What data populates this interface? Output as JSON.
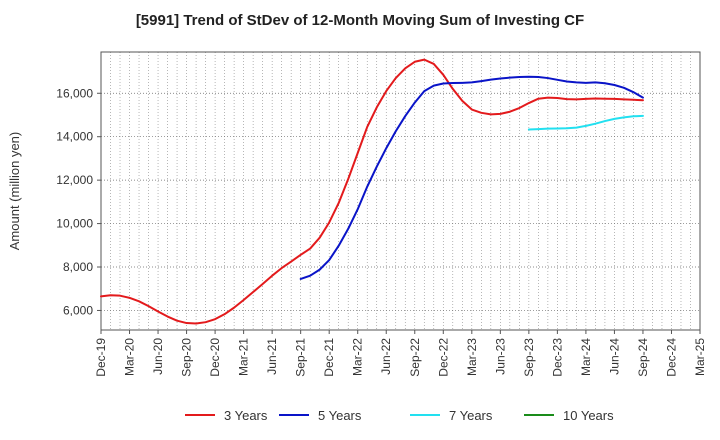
{
  "chart_data": {
    "type": "line",
    "title": "[5991]  Trend of StDev of 12-Month Moving Sum of Investing CF",
    "xlabel": "",
    "ylabel": "Amount (million yen)",
    "ylim": [
      5100,
      17900
    ],
    "yticks": [
      6000,
      8000,
      10000,
      12000,
      14000,
      16000
    ],
    "ytick_labels": [
      "6,000",
      "8,000",
      "10,000",
      "12,000",
      "14,000",
      "16,000"
    ],
    "x_range": [
      "Dec-19",
      "Mar-25"
    ],
    "xtick_labels": [
      "Dec-19",
      "Mar-20",
      "Jun-20",
      "Sep-20",
      "Dec-20",
      "Mar-21",
      "Jun-21",
      "Sep-21",
      "Dec-21",
      "Mar-22",
      "Jun-22",
      "Sep-22",
      "Dec-22",
      "Mar-23",
      "Jun-23",
      "Sep-23",
      "Dec-23",
      "Mar-24",
      "Jun-24",
      "Sep-24",
      "Dec-24",
      "Mar-25"
    ],
    "grid": true,
    "legend_position": "bottom",
    "series": [
      {
        "name": "3 Years",
        "color": "#e31a1c",
        "x": [
          "Dec-19",
          "Jan-20",
          "Feb-20",
          "Mar-20",
          "Apr-20",
          "May-20",
          "Jun-20",
          "Jul-20",
          "Aug-20",
          "Sep-20",
          "Oct-20",
          "Nov-20",
          "Dec-20",
          "Jan-21",
          "Feb-21",
          "Mar-21",
          "Apr-21",
          "May-21",
          "Jun-21",
          "Jul-21",
          "Aug-21",
          "Sep-21",
          "Oct-21",
          "Nov-21",
          "Dec-21",
          "Jan-22",
          "Feb-22",
          "Mar-22",
          "Apr-22",
          "May-22",
          "Jun-22",
          "Jul-22",
          "Aug-22",
          "Sep-22",
          "Oct-22",
          "Nov-22",
          "Dec-22",
          "Jan-23",
          "Feb-23",
          "Mar-23",
          "Apr-23",
          "May-23",
          "Jun-23",
          "Jul-23",
          "Aug-23",
          "Sep-23",
          "Oct-23",
          "Nov-23",
          "Dec-23",
          "Jan-24",
          "Feb-24",
          "Mar-24",
          "Apr-24",
          "May-24",
          "Jun-24",
          "Jul-24",
          "Aug-24",
          "Sep-24"
        ],
        "values": [
          6650,
          6700,
          6680,
          6580,
          6420,
          6200,
          5950,
          5720,
          5530,
          5420,
          5400,
          5460,
          5600,
          5830,
          6130,
          6480,
          6850,
          7220,
          7600,
          7950,
          8250,
          8560,
          8850,
          9350,
          10050,
          10950,
          12050,
          13250,
          14450,
          15350,
          16100,
          16700,
          17150,
          17450,
          17550,
          17350,
          16850,
          16200,
          15650,
          15250,
          15100,
          15030,
          15050,
          15150,
          15320,
          15550,
          15750,
          15800,
          15780,
          15730,
          15720,
          15740,
          15760,
          15750,
          15740,
          15720,
          15700,
          15680
        ]
      },
      {
        "name": "5 Years",
        "color": "#0a14c8",
        "x": [
          "Sep-21",
          "Oct-21",
          "Nov-21",
          "Dec-21",
          "Jan-22",
          "Feb-22",
          "Mar-22",
          "Apr-22",
          "May-22",
          "Jun-22",
          "Jul-22",
          "Aug-22",
          "Sep-22",
          "Oct-22",
          "Nov-22",
          "Dec-22",
          "Jan-23",
          "Feb-23",
          "Mar-23",
          "Apr-23",
          "May-23",
          "Jun-23",
          "Jul-23",
          "Aug-23",
          "Sep-23",
          "Oct-23",
          "Nov-23",
          "Dec-23",
          "Jan-24",
          "Feb-24",
          "Mar-24",
          "Apr-24",
          "May-24",
          "Jun-24",
          "Jul-24",
          "Aug-24",
          "Sep-24"
        ],
        "values": [
          7450,
          7600,
          7880,
          8320,
          8980,
          9760,
          10660,
          11700,
          12620,
          13470,
          14250,
          14950,
          15570,
          16100,
          16350,
          16450,
          16470,
          16480,
          16500,
          16560,
          16630,
          16680,
          16720,
          16750,
          16760,
          16750,
          16700,
          16620,
          16540,
          16500,
          16480,
          16500,
          16460,
          16380,
          16250,
          16050,
          15800
        ]
      },
      {
        "name": "7 Years",
        "color": "#22e0f0",
        "x": [
          "Sep-23",
          "Oct-23",
          "Nov-23",
          "Dec-23",
          "Jan-24",
          "Feb-24",
          "Mar-24",
          "Apr-24",
          "May-24",
          "Jun-24",
          "Jul-24",
          "Aug-24",
          "Sep-24"
        ],
        "values": [
          14330,
          14350,
          14370,
          14380,
          14390,
          14420,
          14500,
          14600,
          14720,
          14820,
          14890,
          14940,
          14960
        ]
      },
      {
        "name": "10 Years",
        "color": "#1a8c1a",
        "x": [],
        "values": []
      }
    ]
  }
}
